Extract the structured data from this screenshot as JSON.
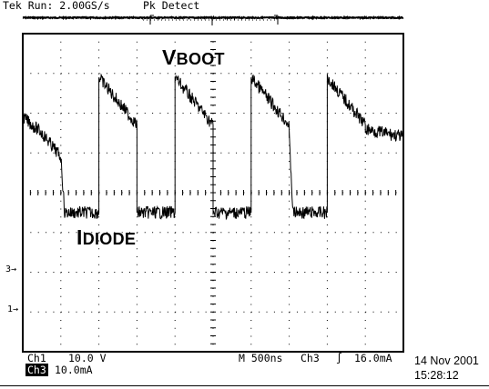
{
  "header": {
    "status": "Tek Run: 2.00GS/s",
    "acq_mode": "Pk Detect"
  },
  "traces": {
    "vboot": {
      "main": "V",
      "sub": "BOOT"
    },
    "idiode": {
      "main": "I",
      "sub": "DIODE"
    }
  },
  "markers": {
    "ch3": "3→",
    "ch1": "1→"
  },
  "footer": {
    "ch1_label": "Ch1",
    "ch1_scale": "10.0 V",
    "ch3_label": "Ch3",
    "ch3_scale": "10.0mA",
    "timebase": "M 500ns",
    "trigger_src": "Ch3",
    "trigger_slope": "∫",
    "trigger_level": "16.0mA",
    "date": "14 Nov 2001",
    "time": "15:28:12"
  },
  "chart_data": {
    "type": "line",
    "xlabel": "",
    "ylabel": "",
    "grid": true,
    "x_unit": "ns",
    "x_range": [
      -2500,
      2500
    ],
    "divisions": {
      "x": 10,
      "y": 8
    },
    "series": [
      {
        "channel": "Ch1",
        "scale_per_div": "10.0 V",
        "points": [
          [
            -2500,
            4.4
          ],
          [
            2500,
            4.4
          ]
        ],
        "y_unit": "div",
        "noise": "low"
      },
      {
        "channel": "Ch3",
        "scale_per_div": "10.0mA",
        "y_unit": "div",
        "noise": "high",
        "points": [
          [
            -2500,
            1.9
          ],
          [
            -2250,
            1.5
          ],
          [
            -2000,
            0.9
          ],
          [
            -1950,
            -0.5
          ],
          [
            -1500,
            -0.5
          ],
          [
            -1500,
            2.9
          ],
          [
            -1000,
            1.7
          ],
          [
            -1000,
            -0.5
          ],
          [
            -500,
            -0.5
          ],
          [
            -500,
            2.9
          ],
          [
            0,
            1.7
          ],
          [
            0,
            -0.5
          ],
          [
            500,
            -0.5
          ],
          [
            500,
            2.9
          ],
          [
            1000,
            1.7
          ],
          [
            1000,
            1.4
          ],
          [
            1050,
            -0.5
          ],
          [
            1500,
            -0.5
          ],
          [
            1500,
            2.9
          ],
          [
            2000,
            1.7
          ],
          [
            2000,
            1.6
          ],
          [
            2500,
            1.4
          ]
        ]
      }
    ]
  }
}
